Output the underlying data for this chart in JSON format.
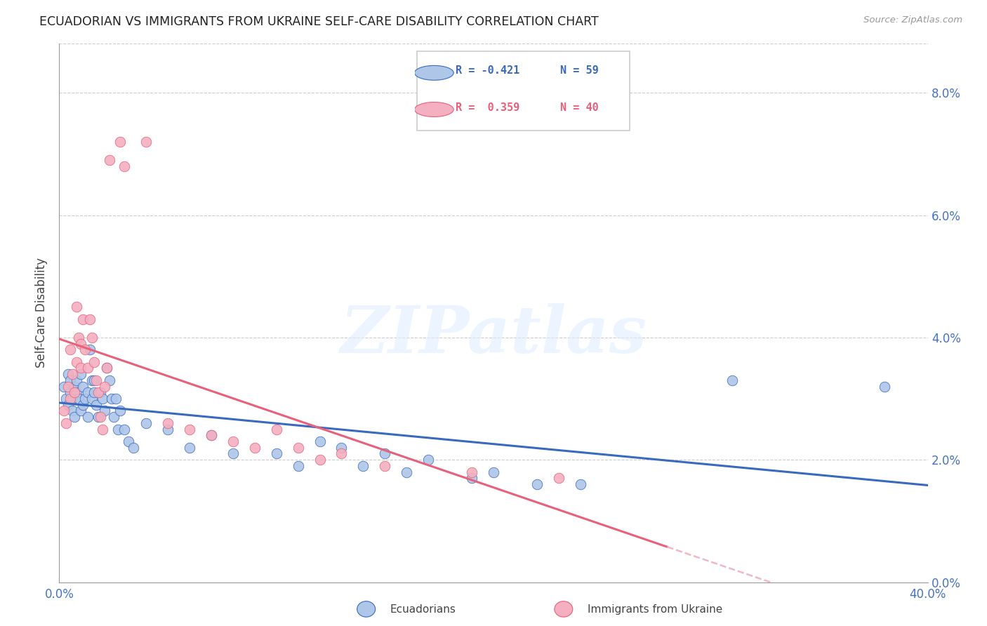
{
  "title": "ECUADORIAN VS IMMIGRANTS FROM UKRAINE SELF-CARE DISABILITY CORRELATION CHART",
  "source": "Source: ZipAtlas.com",
  "ylabel": "Self-Care Disability",
  "xlim": [
    0.0,
    0.4
  ],
  "ylim": [
    0.0,
    0.088
  ],
  "ecuadorians_color": "#aec6e8",
  "ukraine_color": "#f4afc0",
  "trend_ecuador_color": "#3a6abf",
  "trend_ukraine_solid_color": "#e8607a",
  "trend_ukraine_dashed_color": "#f0b8c4",
  "watermark_text": "ZIPatlas",
  "legend_r_blue": "R = -0.421",
  "legend_n_blue": "N = 59",
  "legend_r_pink": "R =  0.359",
  "legend_n_pink": "N = 40",
  "bottom_label1": "Ecuadorians",
  "bottom_label2": "Immigrants from Ukraine",
  "blue_scatter": [
    [
      0.002,
      0.032
    ],
    [
      0.003,
      0.03
    ],
    [
      0.004,
      0.034
    ],
    [
      0.004,
      0.029
    ],
    [
      0.005,
      0.031
    ],
    [
      0.005,
      0.033
    ],
    [
      0.006,
      0.03
    ],
    [
      0.006,
      0.028
    ],
    [
      0.007,
      0.032
    ],
    [
      0.007,
      0.027
    ],
    [
      0.008,
      0.033
    ],
    [
      0.008,
      0.031
    ],
    [
      0.009,
      0.03
    ],
    [
      0.01,
      0.034
    ],
    [
      0.01,
      0.028
    ],
    [
      0.011,
      0.032
    ],
    [
      0.011,
      0.029
    ],
    [
      0.012,
      0.03
    ],
    [
      0.013,
      0.027
    ],
    [
      0.013,
      0.031
    ],
    [
      0.014,
      0.038
    ],
    [
      0.015,
      0.033
    ],
    [
      0.015,
      0.03
    ],
    [
      0.016,
      0.033
    ],
    [
      0.016,
      0.031
    ],
    [
      0.017,
      0.029
    ],
    [
      0.018,
      0.027
    ],
    [
      0.019,
      0.031
    ],
    [
      0.02,
      0.03
    ],
    [
      0.021,
      0.028
    ],
    [
      0.022,
      0.035
    ],
    [
      0.023,
      0.033
    ],
    [
      0.024,
      0.03
    ],
    [
      0.025,
      0.027
    ],
    [
      0.026,
      0.03
    ],
    [
      0.027,
      0.025
    ],
    [
      0.028,
      0.028
    ],
    [
      0.03,
      0.025
    ],
    [
      0.032,
      0.023
    ],
    [
      0.034,
      0.022
    ],
    [
      0.04,
      0.026
    ],
    [
      0.05,
      0.025
    ],
    [
      0.06,
      0.022
    ],
    [
      0.07,
      0.024
    ],
    [
      0.08,
      0.021
    ],
    [
      0.1,
      0.021
    ],
    [
      0.11,
      0.019
    ],
    [
      0.12,
      0.023
    ],
    [
      0.13,
      0.022
    ],
    [
      0.14,
      0.019
    ],
    [
      0.15,
      0.021
    ],
    [
      0.16,
      0.018
    ],
    [
      0.17,
      0.02
    ],
    [
      0.19,
      0.017
    ],
    [
      0.2,
      0.018
    ],
    [
      0.22,
      0.016
    ],
    [
      0.24,
      0.016
    ],
    [
      0.31,
      0.033
    ],
    [
      0.38,
      0.032
    ]
  ],
  "pink_scatter": [
    [
      0.002,
      0.028
    ],
    [
      0.003,
      0.026
    ],
    [
      0.004,
      0.032
    ],
    [
      0.005,
      0.03
    ],
    [
      0.005,
      0.038
    ],
    [
      0.006,
      0.034
    ],
    [
      0.007,
      0.031
    ],
    [
      0.008,
      0.036
    ],
    [
      0.008,
      0.045
    ],
    [
      0.009,
      0.04
    ],
    [
      0.01,
      0.035
    ],
    [
      0.01,
      0.039
    ],
    [
      0.011,
      0.043
    ],
    [
      0.012,
      0.038
    ],
    [
      0.013,
      0.035
    ],
    [
      0.014,
      0.043
    ],
    [
      0.015,
      0.04
    ],
    [
      0.016,
      0.036
    ],
    [
      0.017,
      0.033
    ],
    [
      0.018,
      0.031
    ],
    [
      0.019,
      0.027
    ],
    [
      0.02,
      0.025
    ],
    [
      0.021,
      0.032
    ],
    [
      0.022,
      0.035
    ],
    [
      0.023,
      0.069
    ],
    [
      0.028,
      0.072
    ],
    [
      0.03,
      0.068
    ],
    [
      0.04,
      0.072
    ],
    [
      0.05,
      0.026
    ],
    [
      0.06,
      0.025
    ],
    [
      0.07,
      0.024
    ],
    [
      0.08,
      0.023
    ],
    [
      0.09,
      0.022
    ],
    [
      0.1,
      0.025
    ],
    [
      0.11,
      0.022
    ],
    [
      0.12,
      0.02
    ],
    [
      0.13,
      0.021
    ],
    [
      0.15,
      0.019
    ],
    [
      0.19,
      0.018
    ],
    [
      0.23,
      0.017
    ]
  ],
  "trend_pink_x_solid_end": 0.28
}
